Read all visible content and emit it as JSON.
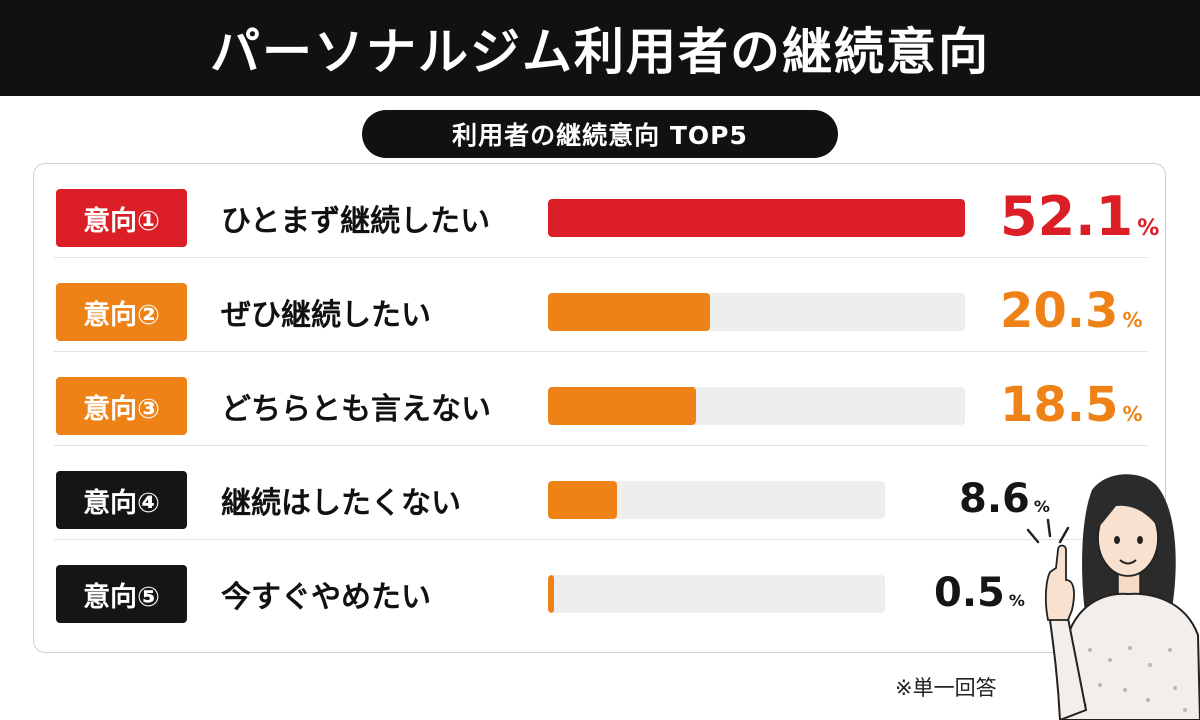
{
  "title": "パーソナルジム利用者の継続意向",
  "subtitle": "利用者の継続意向 TOP5",
  "note": "※単一回答",
  "colors": {
    "red": "#dc1e26",
    "orange": "#ee8217",
    "black": "#151515",
    "track": "#eeeeee"
  },
  "chart_data": {
    "type": "bar",
    "orientation": "horizontal",
    "title": "利用者の継続意向 TOP5",
    "unit": "%",
    "xlim": [
      0,
      52.1
    ],
    "rows": [
      {
        "rank": "意向①",
        "label": "ひとまず継続したい",
        "value": 52.1,
        "value_text": "52.1",
        "unit": "%",
        "badge_color": "#dc1e26",
        "bar_color": "#dc1e26",
        "value_color": "#dc1e26"
      },
      {
        "rank": "意向②",
        "label": "ぜひ継続したい",
        "value": 20.3,
        "value_text": "20.3",
        "unit": "%",
        "badge_color": "#ee8217",
        "bar_color": "#ee8217",
        "value_color": "#ee8217"
      },
      {
        "rank": "意向③",
        "label": "どちらとも言えない",
        "value": 18.5,
        "value_text": "18.5",
        "unit": "%",
        "badge_color": "#ee8217",
        "bar_color": "#ee8217",
        "value_color": "#ee8217"
      },
      {
        "rank": "意向④",
        "label": "継続はしたくない",
        "value": 8.6,
        "value_text": "8.6",
        "unit": "%",
        "badge_color": "#151515",
        "bar_color": "#ee8217",
        "value_color": "#151515"
      },
      {
        "rank": "意向⑤",
        "label": "今すぐやめたい",
        "value": 0.5,
        "value_text": "0.5",
        "unit": "%",
        "badge_color": "#151515",
        "bar_color": "#ee8217",
        "value_color": "#151515"
      }
    ]
  }
}
